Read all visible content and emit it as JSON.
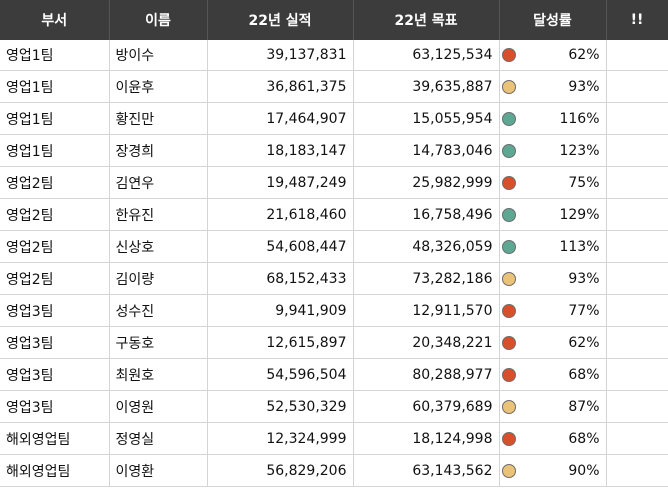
{
  "headers": {
    "dept": "부서",
    "name": "이름",
    "actual": "22년 실적",
    "target": "22년 목표",
    "rate": "달성률",
    "flag": "!!"
  },
  "status_colors": {
    "red": "#d94f2b",
    "yellow": "#eac27a",
    "green": "#5ea893"
  },
  "rows": [
    {
      "dept": "영업1팀",
      "name": "방이수",
      "actual": "39,137,831",
      "target": "63,125,534",
      "rate": "62%",
      "status": "red"
    },
    {
      "dept": "영업1팀",
      "name": "이윤후",
      "actual": "36,861,375",
      "target": "39,635,887",
      "rate": "93%",
      "status": "yellow"
    },
    {
      "dept": "영업1팀",
      "name": "황진만",
      "actual": "17,464,907",
      "target": "15,055,954",
      "rate": "116%",
      "status": "green"
    },
    {
      "dept": "영업1팀",
      "name": "장경희",
      "actual": "18,183,147",
      "target": "14,783,046",
      "rate": "123%",
      "status": "green"
    },
    {
      "dept": "영업2팀",
      "name": "김연우",
      "actual": "19,487,249",
      "target": "25,982,999",
      "rate": "75%",
      "status": "red"
    },
    {
      "dept": "영업2팀",
      "name": "한유진",
      "actual": "21,618,460",
      "target": "16,758,496",
      "rate": "129%",
      "status": "green"
    },
    {
      "dept": "영업2팀",
      "name": "신상호",
      "actual": "54,608,447",
      "target": "48,326,059",
      "rate": "113%",
      "status": "green"
    },
    {
      "dept": "영업2팀",
      "name": "김이량",
      "actual": "68,152,433",
      "target": "73,282,186",
      "rate": "93%",
      "status": "yellow"
    },
    {
      "dept": "영업3팀",
      "name": "성수진",
      "actual": "9,941,909",
      "target": "12,911,570",
      "rate": "77%",
      "status": "red"
    },
    {
      "dept": "영업3팀",
      "name": "구동호",
      "actual": "12,615,897",
      "target": "20,348,221",
      "rate": "62%",
      "status": "red"
    },
    {
      "dept": "영업3팀",
      "name": "최원호",
      "actual": "54,596,504",
      "target": "80,288,977",
      "rate": "68%",
      "status": "red"
    },
    {
      "dept": "영업3팀",
      "name": "이영원",
      "actual": "52,530,329",
      "target": "60,379,689",
      "rate": "87%",
      "status": "yellow"
    },
    {
      "dept": "해외영업팀",
      "name": "정영실",
      "actual": "12,324,999",
      "target": "18,124,998",
      "rate": "68%",
      "status": "red"
    },
    {
      "dept": "해외영업팀",
      "name": "이영환",
      "actual": "56,829,206",
      "target": "63,143,562",
      "rate": "90%",
      "status": "yellow"
    }
  ]
}
